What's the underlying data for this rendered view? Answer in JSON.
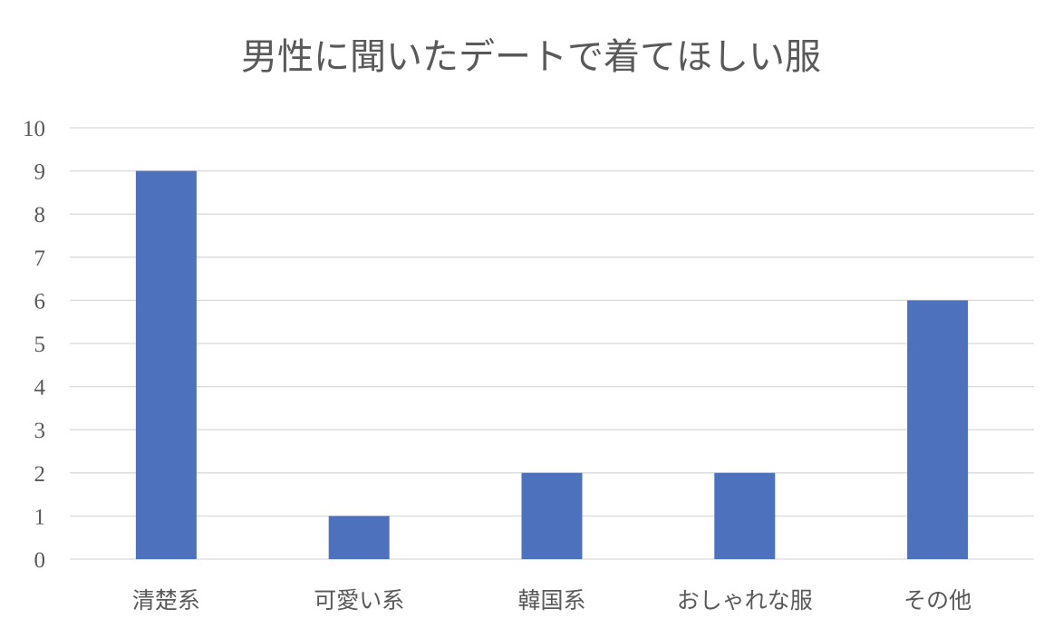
{
  "chart_data": {
    "type": "bar",
    "title": "男性に聞いたデートで着てほしい服",
    "categories": [
      "清楚系",
      "可愛い系",
      "韓国系",
      "おしゃれな服",
      "その他"
    ],
    "values": [
      9,
      1,
      2,
      2,
      6
    ],
    "ylim": [
      0,
      10
    ],
    "yticks": [
      "0",
      "1",
      "2",
      "3",
      "4",
      "5",
      "6",
      "7",
      "8",
      "9",
      "10"
    ],
    "grid": true,
    "legend": "none",
    "bar_color": "#4e71bd"
  }
}
